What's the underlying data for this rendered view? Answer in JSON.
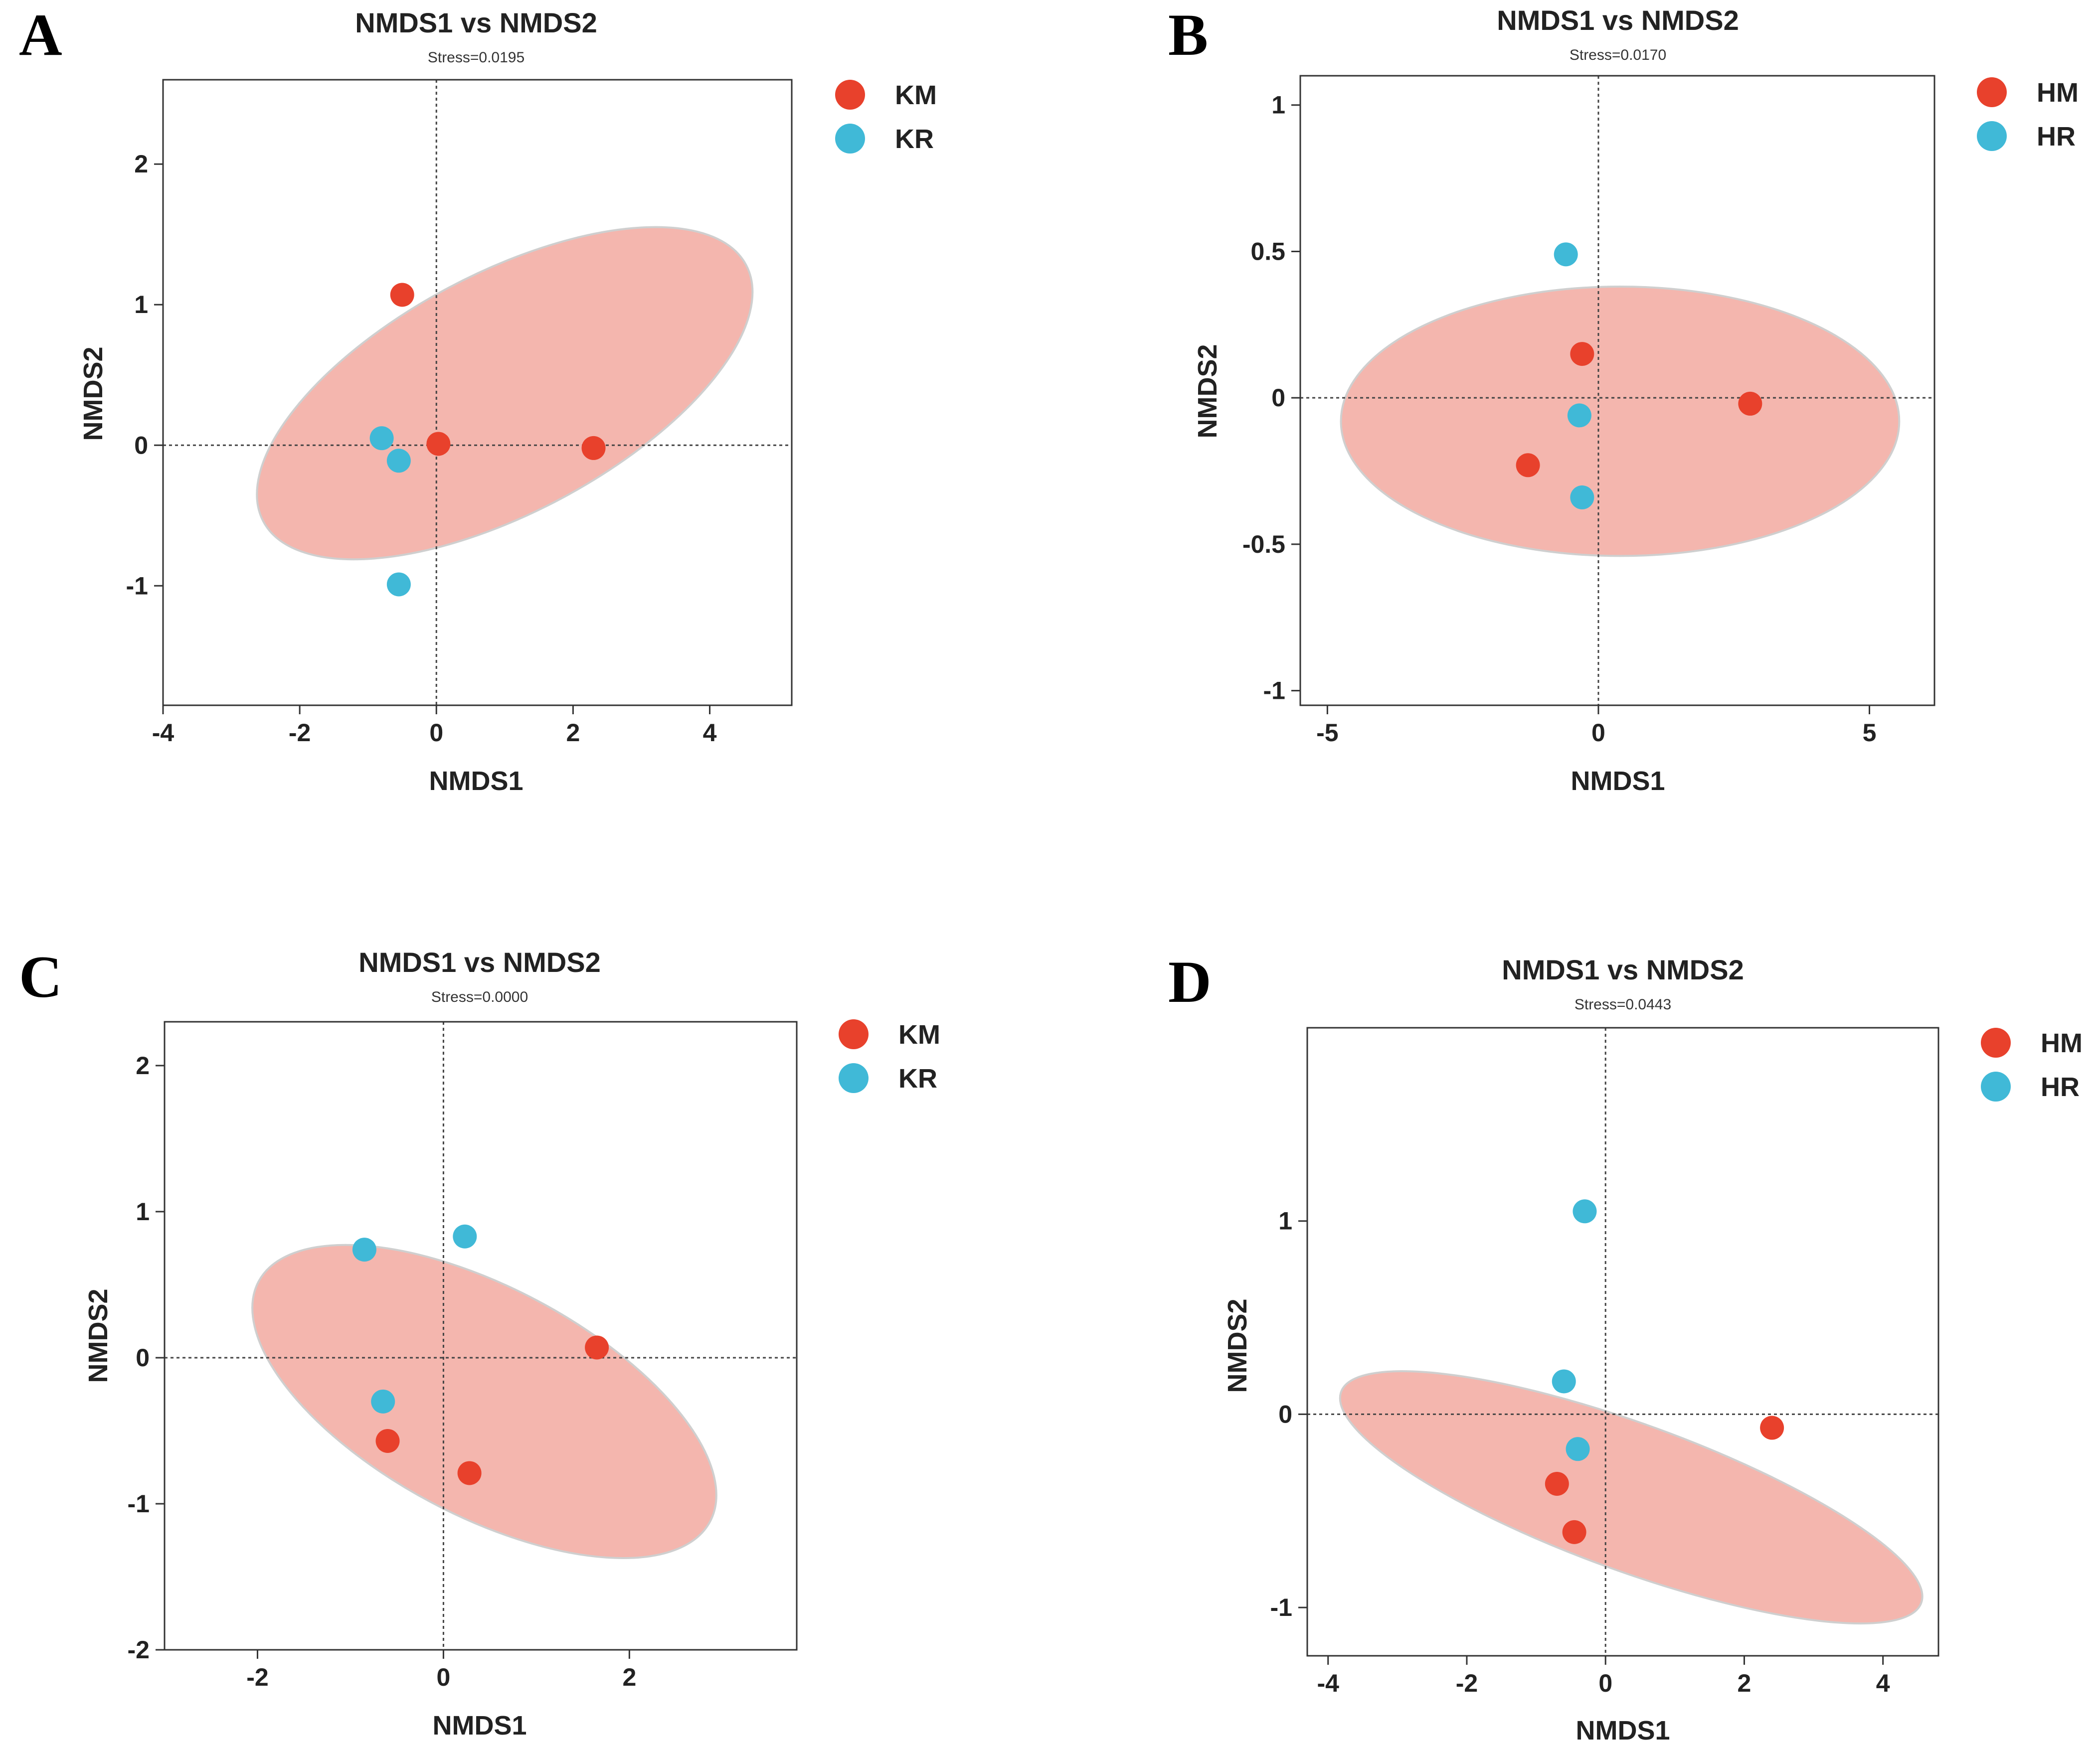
{
  "colors": {
    "groupA": "#e8412c",
    "groupB": "#40b9d7",
    "ellipse_fill": "#f4b6ae",
    "ellipse_stroke": "#cfcfcf"
  },
  "chart_data": [
    {
      "type": "scatter",
      "panel": "A",
      "title": "NMDS1 vs NMDS2",
      "subtitle": "Stress=0.0195",
      "xlabel": "NMDS1",
      "ylabel": "NMDS2",
      "xlim": [
        -4,
        5.2
      ],
      "ylim": [
        -1.85,
        2.6
      ],
      "xticks": [
        -4,
        -2,
        0,
        2,
        4
      ],
      "yticks": [
        -1,
        0,
        1,
        2
      ],
      "legend_position": "top-right-outside",
      "series": [
        {
          "name": "KM",
          "color_key": "groupA",
          "points": [
            [
              -0.5,
              1.07
            ],
            [
              0.03,
              0.01
            ],
            [
              2.3,
              -0.02
            ]
          ]
        },
        {
          "name": "KR",
          "color_key": "groupB",
          "points": [
            [
              -0.8,
              0.05
            ],
            [
              -0.55,
              -0.11
            ],
            [
              -0.55,
              -0.99
            ]
          ]
        }
      ],
      "ellipse": {
        "group": "KM",
        "center": [
          1.0,
          0.37
        ],
        "rx_data": 4.0,
        "ry_data": 0.85,
        "angle_deg": -28
      }
    },
    {
      "type": "scatter",
      "panel": "B",
      "title": "NMDS1 vs NMDS2",
      "subtitle": "Stress=0.0170",
      "xlabel": "NMDS1",
      "ylabel": "NMDS2",
      "xlim": [
        -5.5,
        6.2
      ],
      "ylim": [
        -1.05,
        1.1
      ],
      "xticks": [
        -5,
        0,
        5
      ],
      "yticks": [
        -1,
        -0.5,
        0,
        0.5,
        1
      ],
      "legend_position": "top-right-outside",
      "series": [
        {
          "name": "HM",
          "color_key": "groupA",
          "points": [
            [
              -0.3,
              0.15
            ],
            [
              2.8,
              -0.02
            ],
            [
              -1.3,
              -0.23
            ]
          ]
        },
        {
          "name": "HR",
          "color_key": "groupB",
          "points": [
            [
              -0.6,
              0.49
            ],
            [
              -0.35,
              -0.06
            ],
            [
              -0.3,
              -0.34
            ]
          ]
        }
      ],
      "ellipse": {
        "group": "HM",
        "center": [
          0.4,
          -0.08
        ],
        "rx_data": 5.15,
        "ry_data": 0.46,
        "angle_deg": 0
      }
    },
    {
      "type": "scatter",
      "panel": "C",
      "title": "NMDS1 vs NMDS2",
      "subtitle": "Stress=0.0000",
      "xlabel": "NMDS1",
      "ylabel": "NMDS2",
      "xlim": [
        -3,
        3.8
      ],
      "ylim": [
        -2,
        2.3
      ],
      "xticks": [
        -2,
        0,
        2
      ],
      "yticks": [
        -2,
        -1,
        0,
        1,
        2
      ],
      "legend_position": "top-right-outside",
      "series": [
        {
          "name": "KM",
          "color_key": "groupA",
          "points": [
            [
              1.65,
              0.07
            ],
            [
              -0.6,
              -0.57
            ],
            [
              0.28,
              -0.79
            ]
          ]
        },
        {
          "name": "KR",
          "color_key": "groupB",
          "points": [
            [
              -0.85,
              0.74
            ],
            [
              0.23,
              0.83
            ],
            [
              -0.65,
              -0.3
            ]
          ]
        }
      ],
      "ellipse": {
        "group": "KM",
        "center": [
          0.44,
          -0.3
        ],
        "rx_data": 2.75,
        "ry_data": 0.78,
        "angle_deg": 28
      }
    },
    {
      "type": "scatter",
      "panel": "D",
      "title": "NMDS1 vs NMDS2",
      "subtitle": "Stress=0.0443",
      "xlabel": "NMDS1",
      "ylabel": "NMDS2",
      "xlim": [
        -4.3,
        4.8
      ],
      "ylim": [
        -1.25,
        2.0
      ],
      "xticks": [
        -4,
        -2,
        0,
        2,
        4
      ],
      "yticks": [
        -1,
        0,
        1
      ],
      "legend_position": "top-right-outside",
      "series": [
        {
          "name": "HM",
          "color_key": "groupA",
          "points": [
            [
              2.4,
              -0.07
            ],
            [
              -0.7,
              -0.36
            ],
            [
              -0.45,
              -0.61
            ]
          ]
        },
        {
          "name": "HR",
          "color_key": "groupB",
          "points": [
            [
              -0.3,
              1.05
            ],
            [
              -0.6,
              0.17
            ],
            [
              -0.4,
              -0.18
            ]
          ]
        }
      ],
      "ellipse": {
        "group": "HM",
        "center": [
          0.37,
          -0.43
        ],
        "rx_data": 4.45,
        "ry_data": 0.38,
        "angle_deg": 20
      }
    }
  ]
}
